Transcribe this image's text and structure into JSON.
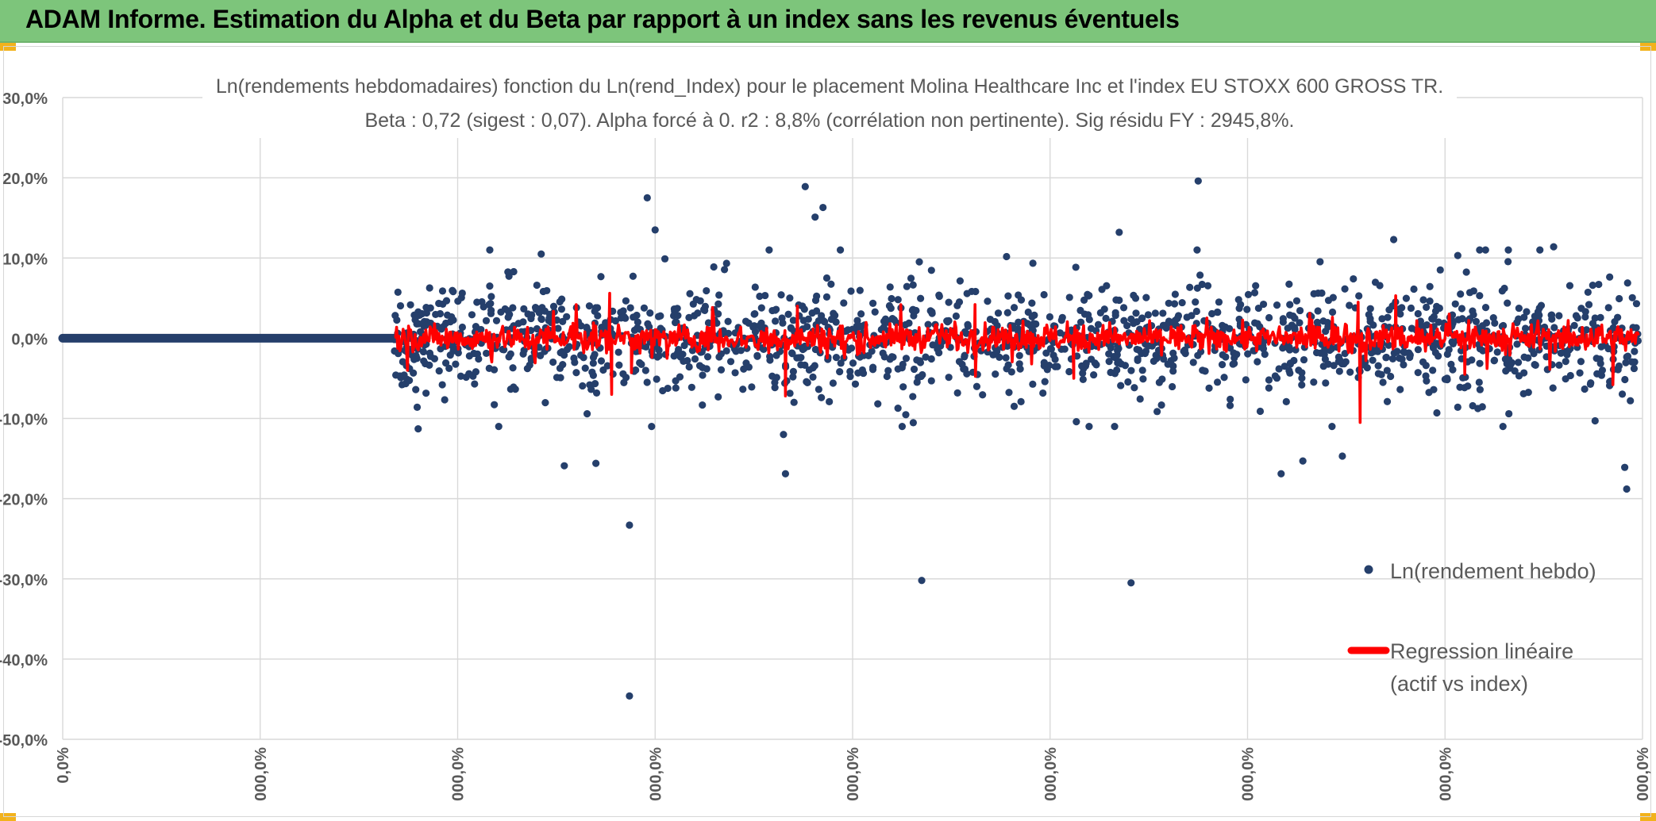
{
  "header": {
    "title": "ADAM Informe. Estimation du Alpha et du Beta par rapport à un index sans les revenus éventuels"
  },
  "colors": {
    "banner": "#7dc57b",
    "points": "#253f6b",
    "regression": "#ff0000",
    "grid": "#d9d9d9",
    "corner": "#f2b21c"
  },
  "chart_data": {
    "type": "scatter",
    "title_line1": "Ln(rendements hebdomadaires) fonction du Ln(rend_Index) pour le placement Molina Healthcare Inc et l'index EU STOXX 600 GROSS TR.",
    "title_line2": "Beta : 0,72 (sigest : 0,07). Alpha forcé à 0. r2 : 8,8% (corrélation non pertinente). Sig résidu FY : 2945,8%.",
    "y_ticks": [
      "30,0%",
      "20,0%",
      "10,0%",
      "0,0%",
      "-10,0%",
      "-20,0%",
      "-30,0%",
      "-40,0%",
      "-50,0%"
    ],
    "x_ticks": [
      "0,0%",
      "000,0%",
      "000,0%",
      "000,0%",
      "000,0%",
      "000,0%",
      "000,0%",
      "000,0%",
      "000,0%"
    ],
    "ylim": [
      -50,
      30
    ],
    "grid": true,
    "legend_position": "right",
    "legend": {
      "points_label": "Ln(rendement hebdo)",
      "line_label_1": "Regression linéaire",
      "line_label_2": "(actif vs index)"
    },
    "series": [
      {
        "name": "Ln(rendement hebdo)",
        "outliers": [
          {
            "x": 2.87,
            "y": -44.6
          },
          {
            "x": 2.87,
            "y": -23.3
          },
          {
            "x": 4.35,
            "y": -30.2
          },
          {
            "x": 5.41,
            "y": -30.5
          },
          {
            "x": 3.76,
            "y": 18.9
          },
          {
            "x": 2.96,
            "y": 17.5
          },
          {
            "x": 3.85,
            "y": 16.3
          },
          {
            "x": 5.75,
            "y": 19.6
          },
          {
            "x": 3.0,
            "y": 13.5
          },
          {
            "x": 3.81,
            "y": 15.1
          },
          {
            "x": 5.35,
            "y": 13.2
          },
          {
            "x": 6.74,
            "y": 12.3
          },
          {
            "x": 7.55,
            "y": 11.4
          },
          {
            "x": 2.54,
            "y": -15.9
          },
          {
            "x": 2.7,
            "y": -15.6
          },
          {
            "x": 3.66,
            "y": -16.9
          },
          {
            "x": 6.17,
            "y": -16.9
          },
          {
            "x": 6.28,
            "y": -15.3
          },
          {
            "x": 6.48,
            "y": -14.7
          },
          {
            "x": 7.91,
            "y": -16.1
          },
          {
            "x": 7.92,
            "y": -18.8
          },
          {
            "x": 1.8,
            "y": -11.3
          },
          {
            "x": 3.65,
            "y": -12.0
          },
          {
            "x": 7.76,
            "y": -10.3
          }
        ]
      },
      {
        "name": "Regression linéaire (actif vs index)",
        "spikes": [
          {
            "x": 2.78,
            "y": -7.0
          },
          {
            "x": 2.77,
            "y": 5.6
          },
          {
            "x": 2.88,
            "y": -4.3
          },
          {
            "x": 3.66,
            "y": -7.2
          },
          {
            "x": 3.72,
            "y": 4.0
          },
          {
            "x": 6.57,
            "y": -10.5
          },
          {
            "x": 6.56,
            "y": 4.5
          },
          {
            "x": 6.75,
            "y": 5.3
          },
          {
            "x": 7.1,
            "y": -4.5
          },
          {
            "x": 7.85,
            "y": -5.8
          },
          {
            "x": 4.62,
            "y": 4.2
          },
          {
            "x": 5.12,
            "y": -5.0
          }
        ]
      }
    ]
  }
}
